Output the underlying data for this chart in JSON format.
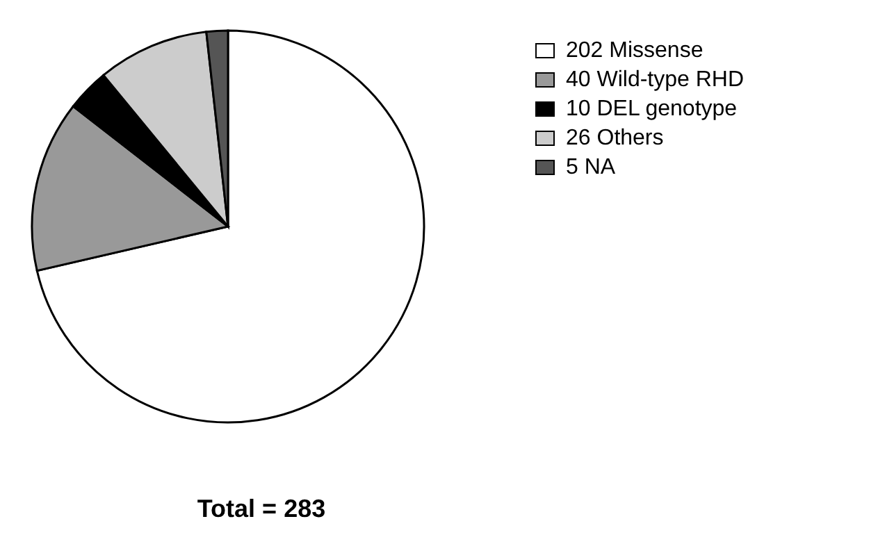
{
  "chart_data": {
    "type": "pie",
    "categories": [
      "202 Missense",
      "40 Wild-type RHD",
      "10 DEL genotype",
      "26 Others",
      "5 NA"
    ],
    "values": [
      202,
      40,
      10,
      26,
      5
    ],
    "colors": [
      "#ffffff",
      "#999999",
      "#000000",
      "#cccccc",
      "#555555"
    ],
    "legend": "top right",
    "annotations": [
      "Total = 283"
    ]
  }
}
